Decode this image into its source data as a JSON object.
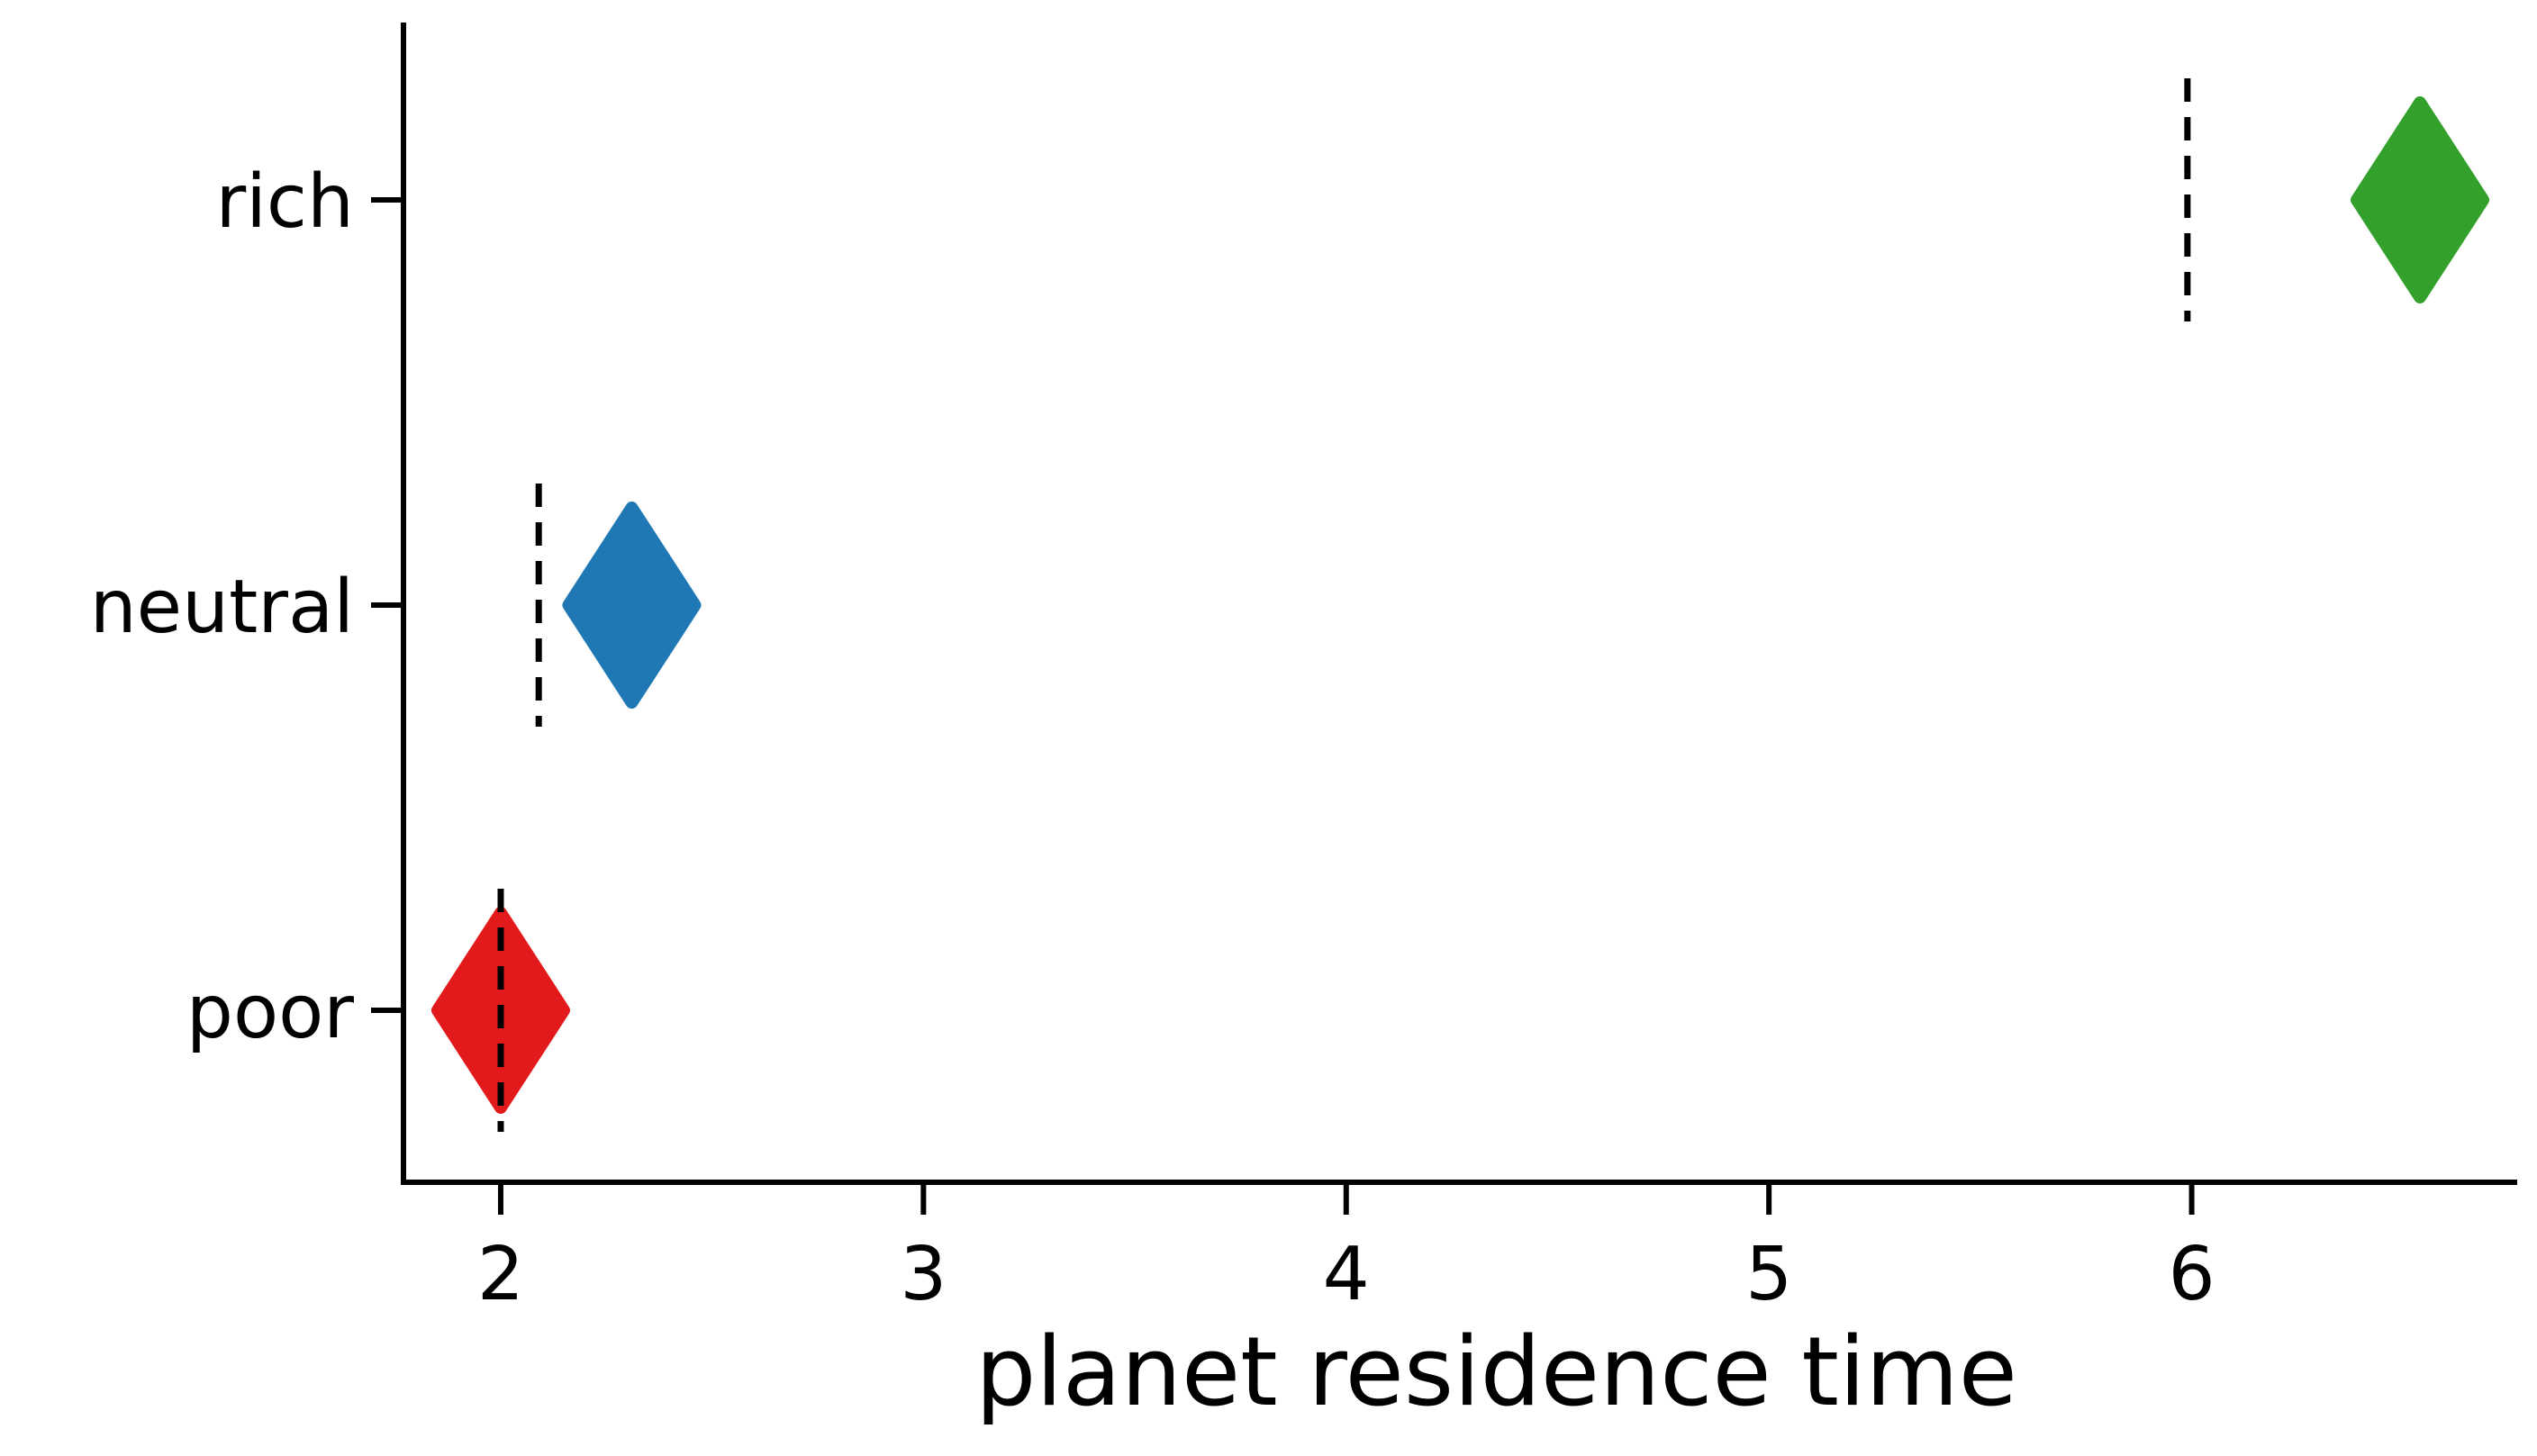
{
  "chart_data": {
    "type": "scatter",
    "title": "",
    "xlabel": "planet residence time",
    "ylabel": "",
    "xlim": [
      1.77,
      6.77
    ],
    "x_ticks": [
      "2",
      "3",
      "4",
      "5",
      "6"
    ],
    "x_tick_values": [
      2,
      3,
      4,
      5,
      6
    ],
    "categories": [
      "rich",
      "neutral",
      "poor"
    ],
    "grid": false,
    "legend": "none",
    "marker": "diamond",
    "points": [
      {
        "category": "rich",
        "value": 6.54,
        "reference": 5.99,
        "color": "#33a02c"
      },
      {
        "category": "neutral",
        "value": 2.31,
        "reference": 2.09,
        "color": "#1f78b4"
      },
      {
        "category": "poor",
        "value": 2.0,
        "reference": 2.0,
        "color": "#e31a1c"
      }
    ],
    "axis_color": "#000000",
    "reference_line_style": "dashed"
  }
}
